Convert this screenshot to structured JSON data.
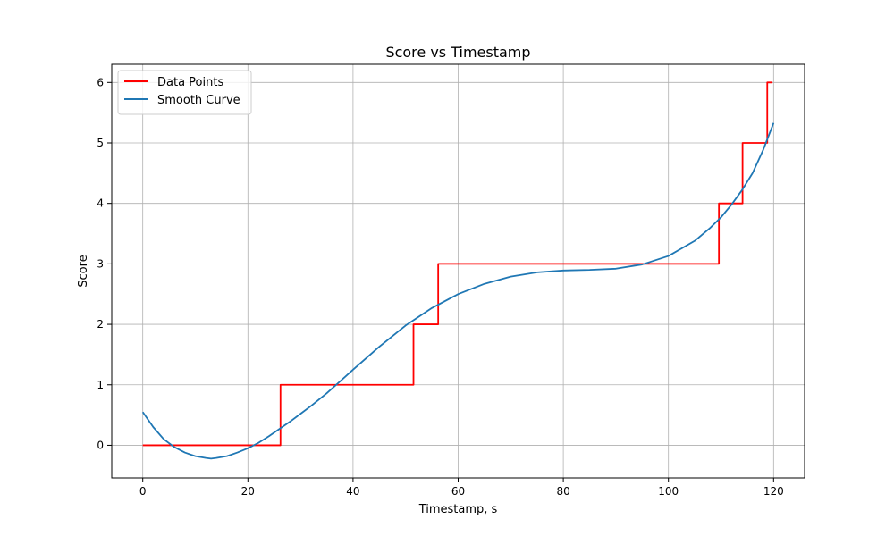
{
  "chart_data": {
    "type": "line",
    "title": "Score vs Timestamp",
    "xlabel": "Timestamp, s",
    "ylabel": "Score",
    "xlim": [
      -5.9,
      125.9
    ],
    "ylim": [
      -0.54,
      6.3
    ],
    "xticks": [
      0,
      20,
      40,
      60,
      80,
      100,
      120
    ],
    "yticks": [
      0,
      1,
      2,
      3,
      4,
      5,
      6
    ],
    "xtick_labels": [
      "0",
      "20",
      "40",
      "60",
      "80",
      "100",
      "120"
    ],
    "ytick_labels": [
      "0",
      "1",
      "2",
      "3",
      "4",
      "5",
      "6"
    ],
    "grid": true,
    "legend_position": "top-left",
    "series": [
      {
        "name": "Data Points",
        "color": "#ff0000",
        "kind": "step",
        "x": [
          0,
          26.2,
          26.2,
          51.5,
          51.5,
          56.2,
          56.2,
          109.6,
          109.6,
          114.1,
          114.1,
          118.8,
          118.8,
          119.8
        ],
        "y": [
          0,
          0,
          1,
          1,
          2,
          2,
          3,
          3,
          4,
          4,
          5,
          5,
          6,
          6
        ]
      },
      {
        "name": "Smooth Curve",
        "color": "#1f77b4",
        "kind": "line",
        "x": [
          0,
          2,
          4,
          6,
          8,
          10,
          12,
          13,
          14,
          16,
          18,
          20,
          22,
          24,
          26,
          28,
          30,
          32,
          35,
          40,
          45,
          50,
          55,
          60,
          65,
          70,
          75,
          80,
          85,
          90,
          95,
          100,
          105,
          108,
          110,
          112,
          114,
          116,
          118,
          120
        ],
        "y": [
          0.55,
          0.3,
          0.1,
          -0.03,
          -0.12,
          -0.18,
          -0.21,
          -0.22,
          -0.21,
          -0.18,
          -0.12,
          -0.05,
          0.04,
          0.15,
          0.27,
          0.39,
          0.52,
          0.65,
          0.86,
          1.25,
          1.63,
          1.98,
          2.27,
          2.5,
          2.67,
          2.79,
          2.86,
          2.89,
          2.9,
          2.92,
          2.99,
          3.13,
          3.38,
          3.6,
          3.77,
          3.98,
          4.22,
          4.5,
          4.88,
          5.33
        ]
      }
    ]
  }
}
